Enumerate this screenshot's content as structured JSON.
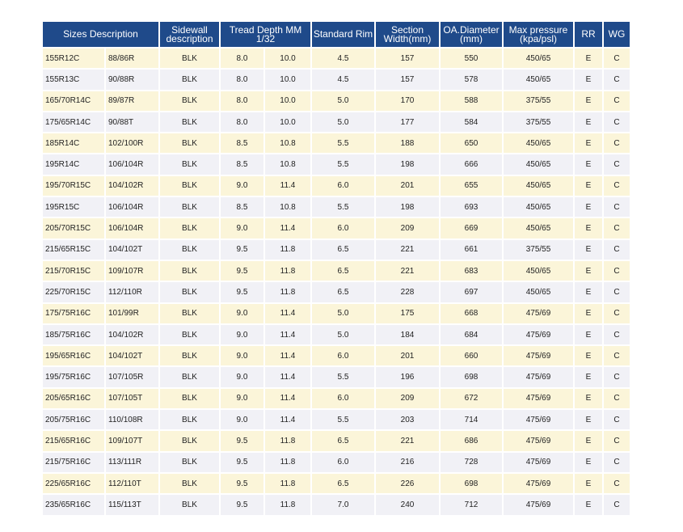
{
  "table": {
    "headers": {
      "sizes": "Sizes Description",
      "sidewall_line1": "Sidewall",
      "sidewall_line2": "description",
      "tread_line1": "Tread Depth MM",
      "tread_line2": "1/32",
      "rim": "Standard Rim",
      "section_line1": "Section",
      "section_line2": "Width(mm)",
      "oa_line1": "OA.Diameter",
      "oa_line2": "(mm)",
      "pressure_line1": "Max pressure",
      "pressure_line2": "(kpa/psl)",
      "rr": "RR",
      "wg": "WG"
    },
    "rows": [
      [
        "155R12C",
        "88/86R",
        "BLK",
        "8.0",
        "10.0",
        "4.5",
        "157",
        "550",
        "450/65",
        "E",
        "C"
      ],
      [
        "155R13C",
        "90/88R",
        "BLK",
        "8.0",
        "10.0",
        "4.5",
        "157",
        "578",
        "450/65",
        "E",
        "C"
      ],
      [
        "165/70R14C",
        "89/87R",
        "BLK",
        "8.0",
        "10.0",
        "5.0",
        "170",
        "588",
        "375/55",
        "E",
        "C"
      ],
      [
        "175/65R14C",
        "90/88T",
        "BLK",
        "8.0",
        "10.0",
        "5.0",
        "177",
        "584",
        "375/55",
        "E",
        "C"
      ],
      [
        "185R14C",
        "102/100R",
        "BLK",
        "8.5",
        "10.8",
        "5.5",
        "188",
        "650",
        "450/65",
        "E",
        "C"
      ],
      [
        "195R14C",
        "106/104R",
        "BLK",
        "8.5",
        "10.8",
        "5.5",
        "198",
        "666",
        "450/65",
        "E",
        "C"
      ],
      [
        "195/70R15C",
        "104/102R",
        "BLK",
        "9.0",
        "11.4",
        "6.0",
        "201",
        "655",
        "450/65",
        "E",
        "C"
      ],
      [
        "195R15C",
        "106/104R",
        "BLK",
        "8.5",
        "10.8",
        "5.5",
        "198",
        "693",
        "450/65",
        "E",
        "C"
      ],
      [
        "205/70R15C",
        "106/104R",
        "BLK",
        "9.0",
        "11.4",
        "6.0",
        "209",
        "669",
        "450/65",
        "E",
        "C"
      ],
      [
        "215/65R15C",
        "104/102T",
        "BLK",
        "9.5",
        "11.8",
        "6.5",
        "221",
        "661",
        "375/55",
        "E",
        "C"
      ],
      [
        "215/70R15C",
        "109/107R",
        "BLK",
        "9.5",
        "11.8",
        "6.5",
        "221",
        "683",
        "450/65",
        "E",
        "C"
      ],
      [
        "225/70R15C",
        "112/110R",
        "BLK",
        "9.5",
        "11.8",
        "6.5",
        "228",
        "697",
        "450/65",
        "E",
        "C"
      ],
      [
        "175/75R16C",
        "101/99R",
        "BLK",
        "9.0",
        "11.4",
        "5.0",
        "175",
        "668",
        "475/69",
        "E",
        "C"
      ],
      [
        "185/75R16C",
        "104/102R",
        "BLK",
        "9.0",
        "11.4",
        "5.0",
        "184",
        "684",
        "475/69",
        "E",
        "C"
      ],
      [
        "195/65R16C",
        "104/102T",
        "BLK",
        "9.0",
        "11.4",
        "6.0",
        "201",
        "660",
        "475/69",
        "E",
        "C"
      ],
      [
        "195/75R16C",
        "107/105R",
        "BLK",
        "9.0",
        "11.4",
        "5.5",
        "196",
        "698",
        "475/69",
        "E",
        "C"
      ],
      [
        "205/65R16C",
        "107/105T",
        "BLK",
        "9.0",
        "11.4",
        "6.0",
        "209",
        "672",
        "475/69",
        "E",
        "C"
      ],
      [
        "205/75R16C",
        "110/108R",
        "BLK",
        "9.0",
        "11.4",
        "5.5",
        "203",
        "714",
        "475/69",
        "E",
        "C"
      ],
      [
        "215/65R16C",
        "109/107T",
        "BLK",
        "9.5",
        "11.8",
        "6.5",
        "221",
        "686",
        "475/69",
        "E",
        "C"
      ],
      [
        "215/75R16C",
        "113/111R",
        "BLK",
        "9.5",
        "11.8",
        "6.0",
        "216",
        "728",
        "475/69",
        "E",
        "C"
      ],
      [
        "225/65R16C",
        "112/110T",
        "BLK",
        "9.5",
        "11.8",
        "6.5",
        "226",
        "698",
        "475/69",
        "E",
        "C"
      ],
      [
        "235/65R16C",
        "115/113T",
        "BLK",
        "9.5",
        "11.8",
        "7.0",
        "240",
        "712",
        "475/69",
        "E",
        "C"
      ]
    ]
  }
}
